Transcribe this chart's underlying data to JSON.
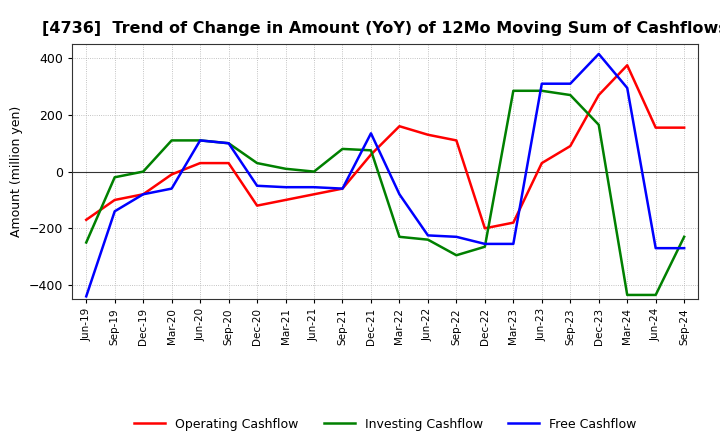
{
  "title": "[4736]  Trend of Change in Amount (YoY) of 12Mo Moving Sum of Cashflows",
  "ylabel": "Amount (million yen)",
  "ylim": [
    -450,
    450
  ],
  "yticks": [
    -400,
    -200,
    0,
    200,
    400
  ],
  "x_labels": [
    "Jun-19",
    "Sep-19",
    "Dec-19",
    "Mar-20",
    "Jun-20",
    "Sep-20",
    "Dec-20",
    "Mar-21",
    "Jun-21",
    "Sep-21",
    "Dec-21",
    "Mar-22",
    "Jun-22",
    "Sep-22",
    "Dec-22",
    "Mar-23",
    "Jun-23",
    "Sep-23",
    "Dec-23",
    "Mar-24",
    "Jun-24",
    "Sep-24"
  ],
  "operating_cashflow": [
    -170,
    -100,
    -80,
    -10,
    30,
    30,
    -120,
    -100,
    -80,
    -60,
    60,
    160,
    130,
    110,
    -200,
    -180,
    30,
    90,
    270,
    375,
    155,
    155
  ],
  "investing_cashflow": [
    -250,
    -20,
    0,
    110,
    110,
    100,
    30,
    10,
    0,
    80,
    75,
    -230,
    -240,
    -295,
    -265,
    285,
    285,
    270,
    165,
    -435,
    -435,
    -230
  ],
  "free_cashflow": [
    -440,
    -140,
    -80,
    -60,
    110,
    100,
    -50,
    -55,
    -55,
    -60,
    135,
    -80,
    -225,
    -230,
    -255,
    -255,
    310,
    310,
    415,
    295,
    -270,
    -270
  ],
  "operating_color": "#ff0000",
  "investing_color": "#008000",
  "free_color": "#0000ff",
  "background_color": "#ffffff",
  "grid_color": "#b0b0b0",
  "line_width": 1.8,
  "title_fontsize": 11.5,
  "legend_labels": [
    "Operating Cashflow",
    "Investing Cashflow",
    "Free Cashflow"
  ]
}
